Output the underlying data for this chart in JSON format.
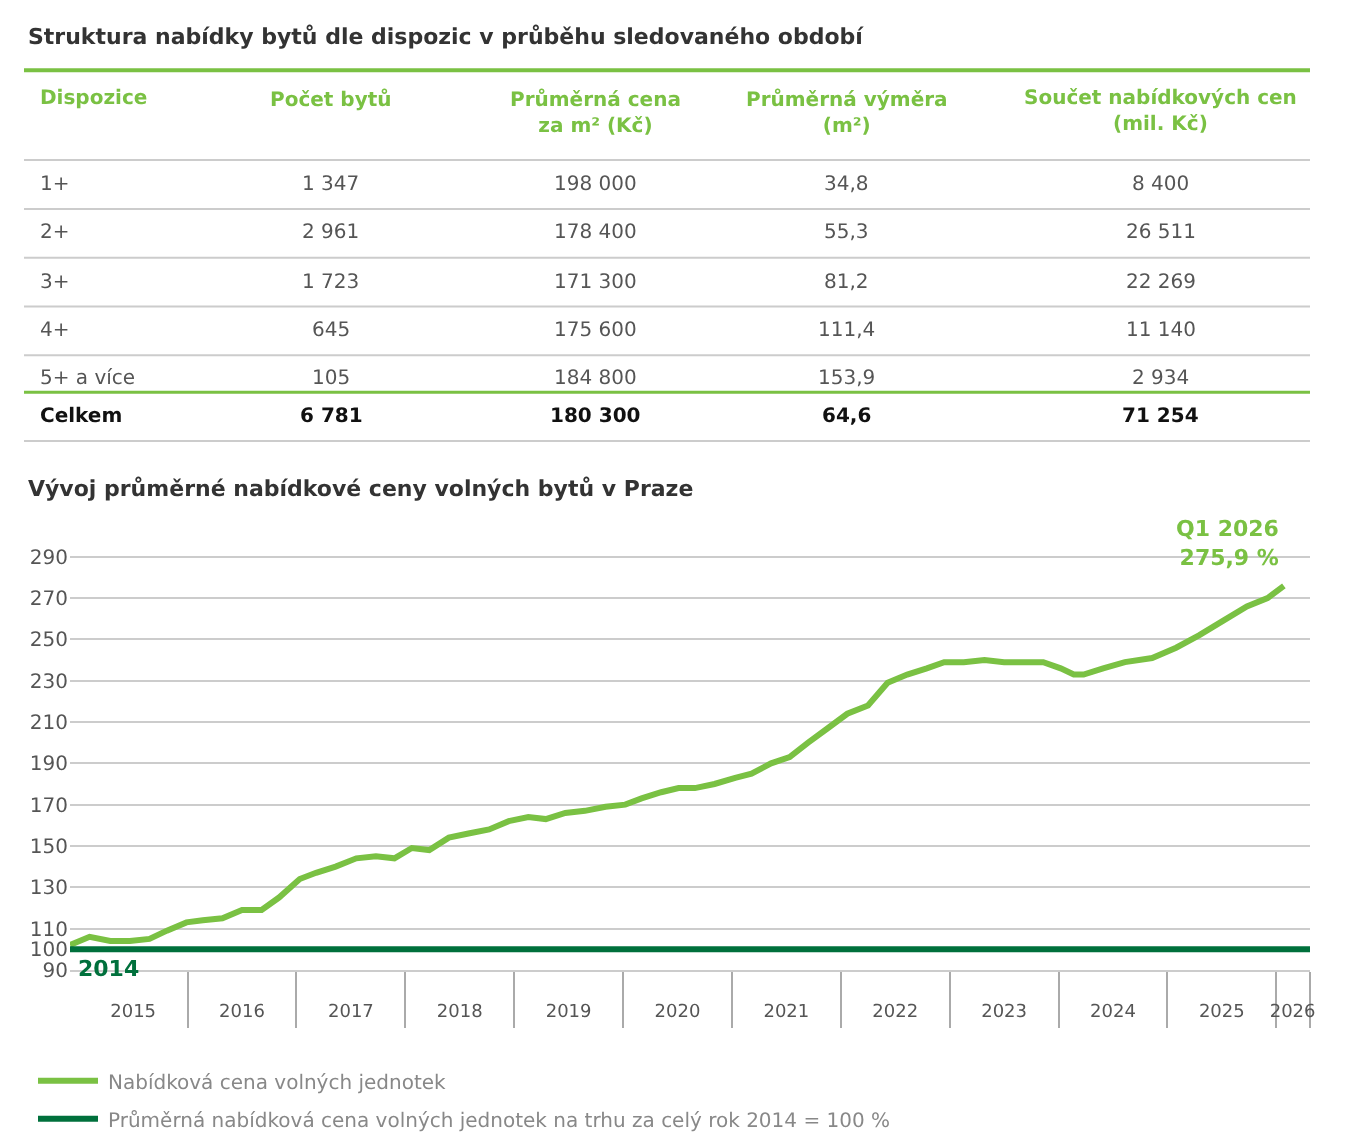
{
  "chart_data": [
    {
      "type": "other",
      "title": "Struktura nabídky bytů dle dispozic v průběhu sledovaného období",
      "categories": [
        "Dispozice",
        "Počet bytů",
        "Průměrná cena\nza m² (Kč)",
        "Průměrná výměra\n(m²)",
        "Součet nabídkových cen\n(mil. Kč)"
      ],
      "y_categories": [
        "1+",
        "2+",
        "3+",
        "4+",
        "5+ a více",
        "Celkem"
      ],
      "cell_labels": [
        [
          "1 347",
          "198 000",
          "34,8",
          "8 400"
        ],
        [
          "2 961",
          "178 400",
          "55,3",
          "26 511"
        ],
        [
          "1 723",
          "171 300",
          "81,2",
          "22 269"
        ],
        [
          "645",
          "175 600",
          "111,4",
          "11 140"
        ],
        [
          "105",
          "184 800",
          "153,9",
          "2 934"
        ],
        [
          "6 781",
          "180 300",
          "64,6",
          "71 254"
        ]
      ]
    },
    {
      "type": "line",
      "title": "Vývoj průměrné nabídkové ceny volných bytů v Praze",
      "xlim": [
        2014.92,
        2026.31
      ],
      "ylim": [
        90,
        292
      ],
      "yticks": [
        90,
        100,
        110,
        130,
        150,
        170,
        190,
        210,
        230,
        250,
        270,
        290
      ],
      "xticks": [
        {
          "value": 2015.5,
          "label": "2015"
        },
        {
          "value": 2016.5,
          "label": "2016"
        },
        {
          "value": 2017.5,
          "label": "2017"
        },
        {
          "value": 2018.5,
          "label": "2018"
        },
        {
          "value": 2019.5,
          "label": "2019"
        },
        {
          "value": 2020.5,
          "label": "2020"
        },
        {
          "value": 2021.5,
          "label": "2021"
        },
        {
          "value": 2022.5,
          "label": "2022"
        },
        {
          "value": 2023.5,
          "label": "2023"
        },
        {
          "value": 2024.5,
          "label": "2024"
        },
        {
          "value": 2025.5,
          "label": "2025"
        },
        {
          "value": 2026.15,
          "label": "2026"
        }
      ],
      "grid": "y",
      "legend": "bottom",
      "marker": "none",
      "line_style": "solid",
      "series": [
        {
          "name": "Nabídková cena volných jednotek",
          "color": "#7ac143",
          "x": [
            2014.92,
            2015.1,
            2015.29,
            2015.47,
            2015.65,
            2015.81,
            2015.99,
            2016.14,
            2016.32,
            2016.5,
            2016.68,
            2016.84,
            2017.03,
            2017.18,
            2017.36,
            2017.55,
            2017.73,
            2017.9,
            2018.06,
            2018.22,
            2018.4,
            2018.58,
            2018.77,
            2018.95,
            2019.13,
            2019.29,
            2019.47,
            2019.65,
            2019.84,
            2020.02,
            2020.17,
            2020.35,
            2020.51,
            2020.66,
            2020.84,
            2021.03,
            2021.18,
            2021.36,
            2021.53,
            2021.7,
            2021.88,
            2022.06,
            2022.25,
            2022.43,
            2022.61,
            2022.79,
            2022.95,
            2023.13,
            2023.32,
            2023.5,
            2023.68,
            2023.86,
            2024.02,
            2024.14,
            2024.23,
            2024.41,
            2024.61,
            2024.86,
            2025.08,
            2025.29,
            2025.51,
            2025.73,
            2025.92,
            2026.07
          ],
          "values": [
            102,
            106,
            104,
            104,
            105,
            109,
            113,
            114,
            115,
            119,
            119,
            125,
            134,
            137,
            140,
            144,
            145,
            144,
            149,
            148,
            154,
            156,
            158,
            162,
            164,
            163,
            166,
            167,
            169,
            170,
            173,
            176,
            178,
            178,
            180,
            183,
            185,
            190,
            193,
            200,
            207,
            214,
            218,
            229,
            233,
            236,
            239,
            239,
            240,
            239,
            239,
            239,
            236,
            233,
            233,
            236,
            239,
            241,
            246,
            252,
            259,
            266,
            270,
            275.9
          ]
        },
        {
          "name": "Průměrná nabídková cena volných jednotek na trhu za celý rok 2014 = 100 %",
          "color": "#00703c",
          "x": [
            2014.92,
            2026.31
          ],
          "values": [
            100,
            100
          ]
        }
      ],
      "annotations": [
        {
          "text": "Q1 2026\n275,9 %",
          "x": 2026.07,
          "y": 275.9
        },
        {
          "text": "2014",
          "x": 2014.95,
          "y": 100
        }
      ]
    }
  ]
}
